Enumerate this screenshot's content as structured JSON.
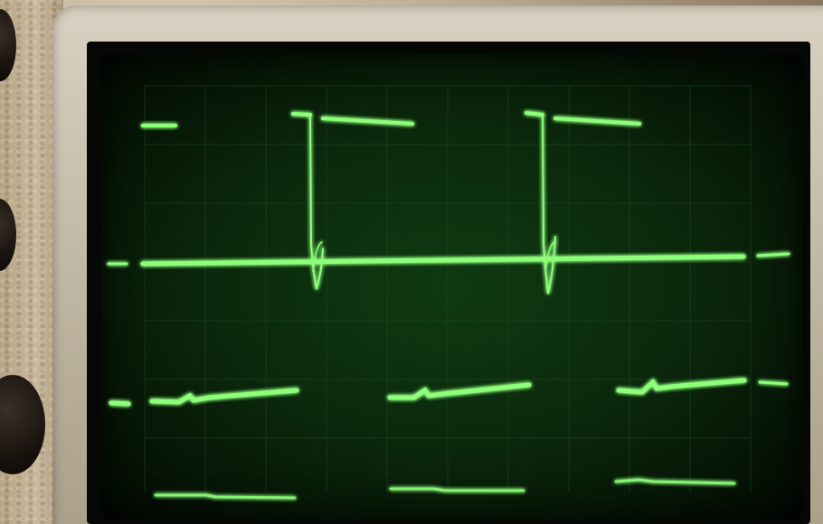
{
  "scene": {
    "description_tags": [
      "oscilloscope-crt",
      "green-phosphor",
      "waveforms"
    ],
    "colors": {
      "phosphor": "#7dff6a",
      "phosphor_glow": "#2cff2c",
      "screen_bg": "#0b2a0c",
      "bezel": "#cfc6b2"
    },
    "channels": 4
  }
}
